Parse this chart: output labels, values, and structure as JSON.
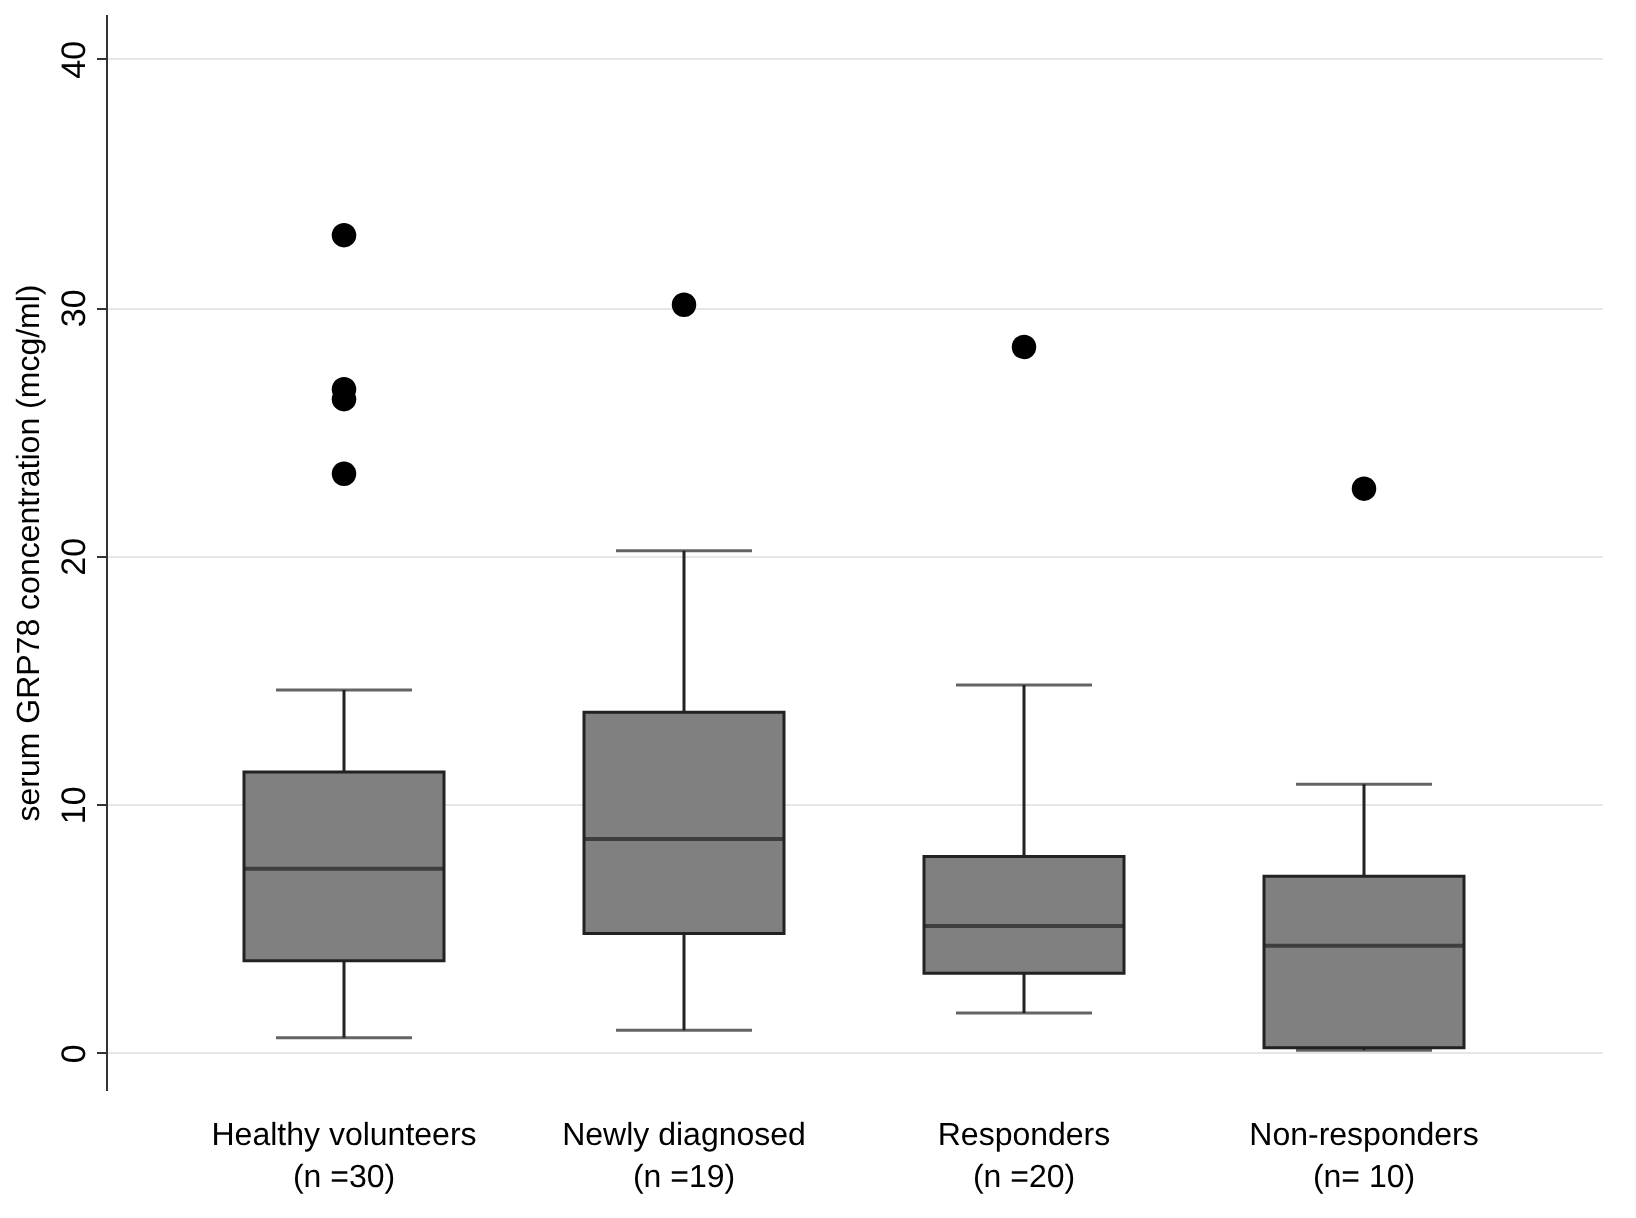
{
  "chart_data": {
    "type": "box",
    "ylabel": "serum GRP78  concentration (mcg/ml)",
    "categories": [
      "Healthy volunteers\n(n =30)",
      "Newly diagnosed\n(n =19)",
      "Responders\n(n =20)",
      "Non-responders\n(n= 10)"
    ],
    "boxes": [
      {
        "low": 0.6,
        "q1": 3.7,
        "median": 7.4,
        "q3": 11.3,
        "high": 14.6,
        "outliers": [
          32.9,
          26.7,
          26.3,
          23.3
        ]
      },
      {
        "low": 0.9,
        "q1": 4.8,
        "median": 8.6,
        "q3": 13.7,
        "high": 20.2,
        "outliers": [
          30.1
        ]
      },
      {
        "low": 1.6,
        "q1": 3.2,
        "median": 5.1,
        "q3": 7.9,
        "high": 14.8,
        "outliers": [
          28.4
        ]
      },
      {
        "low": 0.1,
        "q1": 0.2,
        "median": 4.3,
        "q3": 7.1,
        "high": 10.8,
        "outliers": [
          22.7
        ]
      }
    ],
    "color": "#808080",
    "ylim": [
      -1.5,
      41.8
    ],
    "yticks": [
      0,
      10,
      20,
      30,
      40
    ],
    "grid": "y",
    "marker": "circle"
  }
}
